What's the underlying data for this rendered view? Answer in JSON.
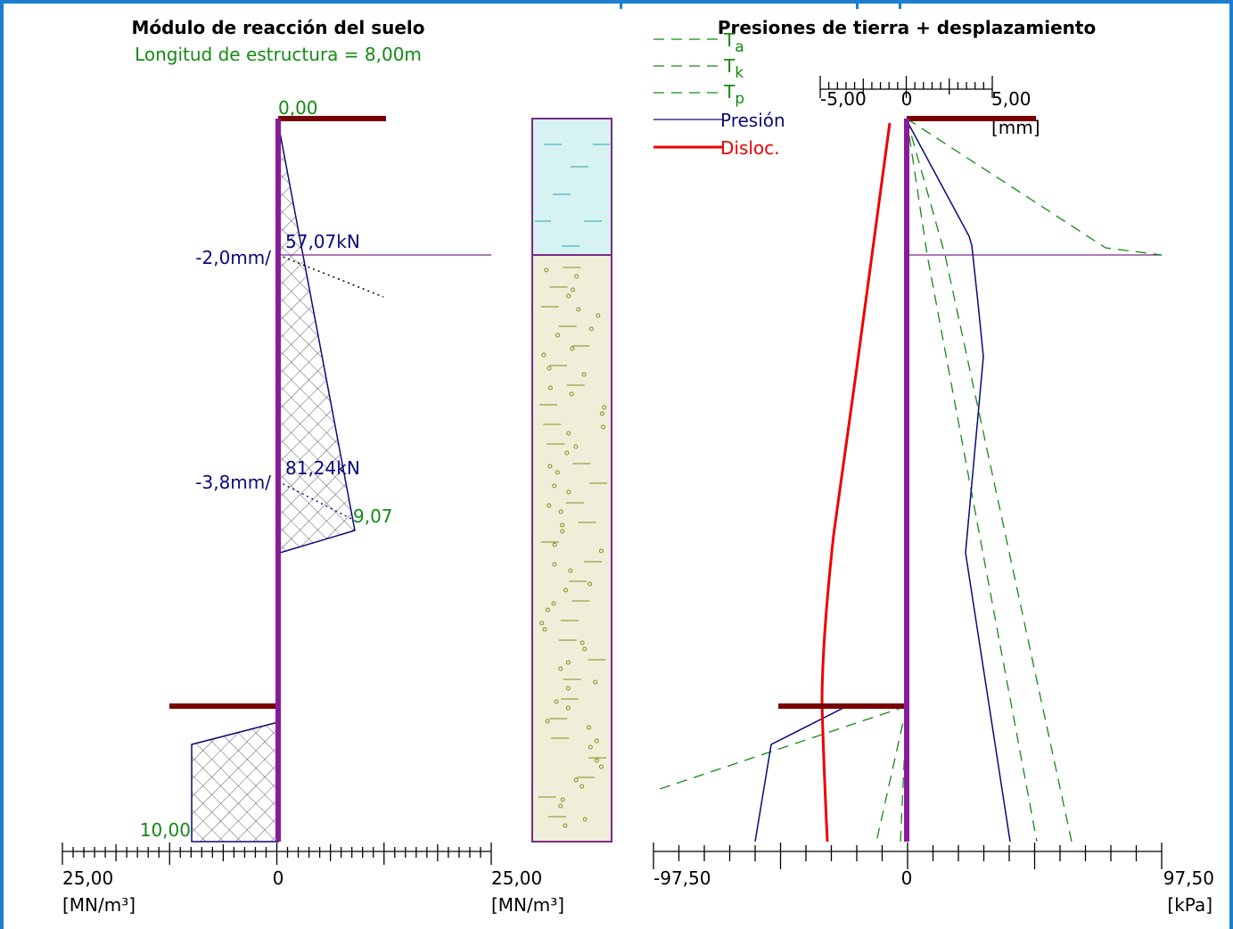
{
  "left_panel": {
    "title": "Módulo de reacción del suelo",
    "subtitle": "Longitud de estructura = 8,00m",
    "top_depth": "0,00",
    "bottom_depth": "10,00",
    "annotations": [
      {
        "displacement": "-2,0mm/",
        "force": "57,07kN"
      },
      {
        "displacement": "-3,8mm/",
        "force": "81,24kN"
      }
    ],
    "modulus_label": "9,07",
    "axis": {
      "min_label": "25,00",
      "zero_label": "0",
      "max_label": "25,00",
      "unit_left": "[MN/m³]",
      "unit_right": "[MN/m³]"
    }
  },
  "right_panel": {
    "title": "Presiones de tierra + desplazamiento",
    "legend": [
      {
        "symbol": "T",
        "subscript": "a"
      },
      {
        "symbol": "T",
        "subscript": "k"
      },
      {
        "symbol": "T",
        "subscript": "p"
      },
      {
        "label": "Presión"
      },
      {
        "label": "Disloc."
      }
    ],
    "displacement_axis": {
      "min_label": "-5,00",
      "zero_label": "0",
      "max_label": "5,00",
      "unit": "[mm]"
    },
    "pressure_axis": {
      "min_label": "-97,50",
      "zero_label": "0",
      "max_label": "97,50",
      "unit": "[kPa]"
    }
  }
}
